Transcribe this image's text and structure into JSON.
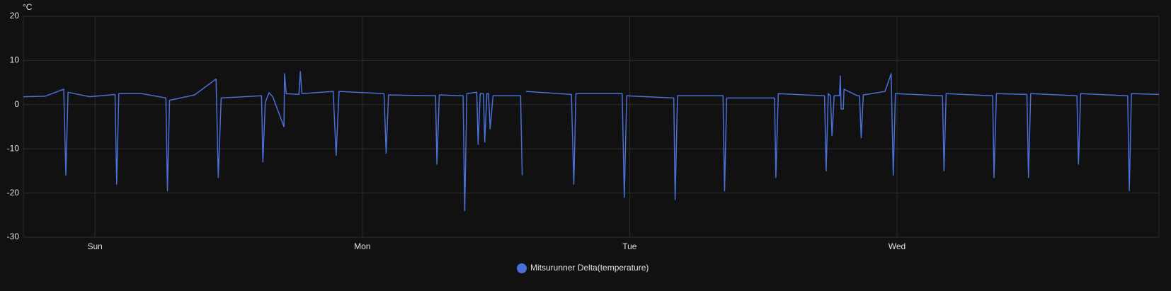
{
  "chart_data": {
    "type": "line",
    "y_unit": "°C",
    "x": [
      -0.268,
      -0.187,
      -0.117,
      -0.109,
      -0.101,
      -0.02,
      0.075,
      0.081,
      0.089,
      0.176,
      0.265,
      0.271,
      0.279,
      0.372,
      0.453,
      0.461,
      0.472,
      0.623,
      0.628,
      0.637,
      0.651,
      0.665,
      0.707,
      0.709,
      0.715,
      0.763,
      0.768,
      0.774,
      0.891,
      0.902,
      0.913,
      1.081,
      1.089,
      1.098,
      1.274,
      1.279,
      1.288,
      1.377,
      1.383,
      1.391,
      1.428,
      1.433,
      1.441,
      1.453,
      1.458,
      1.466,
      1.472,
      1.478,
      1.489,
      1.592,
      1.598,
      1.6,
      1.612,
      1.782,
      1.791,
      1.799,
      1.972,
      1.98,
      1.989,
      2.165,
      2.17,
      2.179,
      2.349,
      2.355,
      2.363,
      2.542,
      2.547,
      2.556,
      2.729,
      2.735,
      2.743,
      2.751,
      2.757,
      2.765,
      2.785,
      2.788,
      2.791,
      2.799,
      2.802,
      2.852,
      2.86,
      2.866,
      2.874,
      2.955,
      2.978,
      2.986,
      2.994,
      3.17,
      3.176,
      3.184,
      3.358,
      3.363,
      3.372,
      3.486,
      3.492,
      3.5,
      3.673,
      3.679,
      3.687,
      3.863,
      3.869,
      3.877,
      3.98
    ],
    "series": [
      {
        "name": "Mitsurunner Delta(temperature)",
        "color": "#4a6fd6",
        "values": [
          1.8,
          1.9,
          3.5,
          -16,
          2.8,
          1.8,
          2.3,
          -18,
          2.5,
          2.5,
          1.5,
          -19.5,
          1.0,
          2.2,
          5.8,
          -16.5,
          1.5,
          2.0,
          -13,
          0.5,
          2.7,
          1.8,
          -5,
          7,
          2.5,
          2.3,
          7.5,
          2.5,
          3.0,
          -11.5,
          3.0,
          2.5,
          -11,
          2.2,
          2.0,
          -13.5,
          2.2,
          2.0,
          -24,
          2.5,
          2.8,
          -9,
          2.5,
          2.5,
          -8.5,
          2.5,
          2.5,
          -5.5,
          2.0,
          2.0,
          -16,
          null,
          3.0,
          2.3,
          -18,
          2.5,
          2.5,
          -21,
          2.0,
          1.5,
          -21.5,
          2.0,
          2.0,
          -19.5,
          1.5,
          1.5,
          -16.5,
          2.5,
          2.0,
          -15,
          2.5,
          2.0,
          -7,
          2.0,
          2.0,
          6.5,
          -1,
          -1,
          3.5,
          2.0,
          2.0,
          -7.5,
          2.2,
          3.0,
          7.0,
          -16,
          2.5,
          2.0,
          -15,
          2.5,
          2.0,
          -16.5,
          2.5,
          2.3,
          -16.5,
          2.5,
          2.0,
          -13.5,
          2.5,
          2.0,
          -19.5,
          2.5,
          2.3
        ]
      }
    ],
    "xlim": [
      -0.268,
      3.98
    ],
    "xticks": [
      {
        "value": 0,
        "label": "Sun"
      },
      {
        "value": 1,
        "label": "Mon"
      },
      {
        "value": 2,
        "label": "Tue"
      },
      {
        "value": 3,
        "label": "Wed"
      }
    ],
    "ylim": [
      -30,
      20
    ],
    "yticks": [
      -30,
      -20,
      -10,
      0,
      10,
      20
    ],
    "grid": true
  }
}
